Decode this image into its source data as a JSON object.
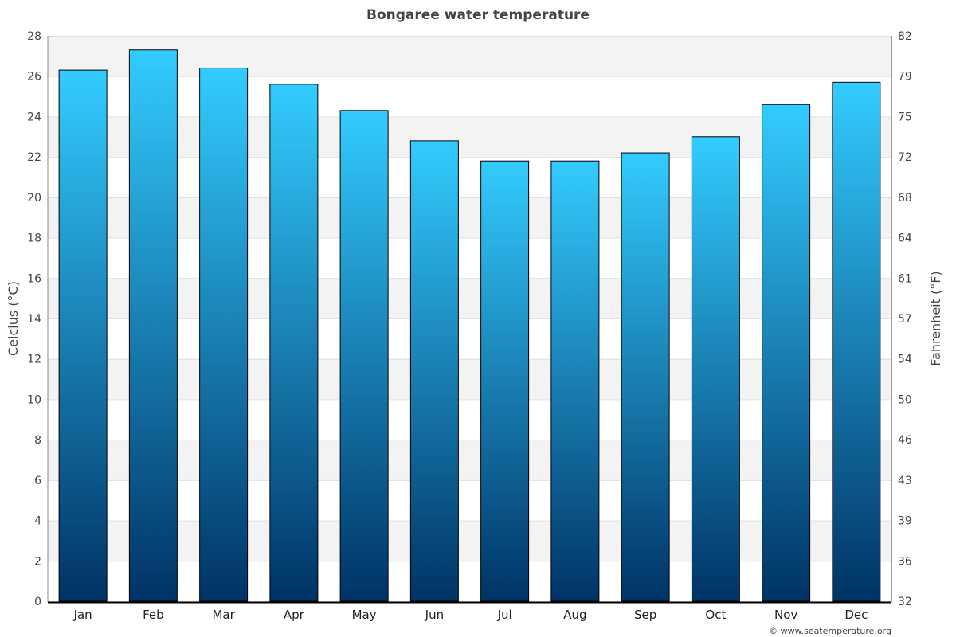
{
  "chart_data": {
    "type": "bar",
    "title": "Bongaree water temperature",
    "ylabel": "Celcius (°C)",
    "ylabel_right": "Fahrenheit (°F)",
    "categories": [
      "Jan",
      "Feb",
      "Mar",
      "Apr",
      "May",
      "Jun",
      "Jul",
      "Aug",
      "Sep",
      "Oct",
      "Nov",
      "Dec"
    ],
    "values": [
      26.3,
      27.3,
      26.4,
      25.6,
      24.3,
      22.8,
      21.8,
      21.8,
      22.2,
      23.0,
      24.6,
      25.7
    ],
    "ylim": [
      0,
      28
    ],
    "yticks": [
      0,
      2,
      4,
      6,
      8,
      10,
      12,
      14,
      16,
      18,
      20,
      22,
      24,
      26,
      28
    ],
    "yticks_right": [
      "32",
      "36",
      "39",
      "43",
      "46",
      "50",
      "54",
      "57",
      "61",
      "64",
      "68",
      "72",
      "75",
      "79",
      "82"
    ],
    "grid": true,
    "colors": {
      "bar_top": "#33ccff",
      "bar_bottom": "#003366",
      "band": "#f3f3f3",
      "grid": "#e0e0e0"
    },
    "credit": "© www.seatemperature.org"
  }
}
